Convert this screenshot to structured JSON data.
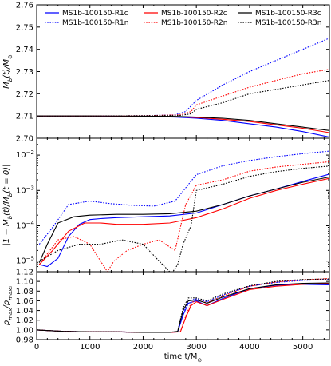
{
  "chart_data": [
    {
      "type": "line",
      "ylabel": "M_b(t)/M_⊙",
      "ylabel_parts": {
        "base": "M",
        "sub": "b",
        "mid": "(t)/M",
        "sub2": "⊙"
      },
      "xlim": [
        0,
        5500
      ],
      "ylim": [
        2.7,
        2.76
      ],
      "yticks": [
        2.7,
        2.71,
        2.72,
        2.73,
        2.74,
        2.75,
        2.76
      ],
      "ytick_labels": [
        "2.70",
        "2.71",
        "2.72",
        "2.73",
        "2.74",
        "2.75",
        "2.76"
      ],
      "xticks": [
        0,
        1000,
        2000,
        3000,
        4000,
        5000
      ],
      "legend": {
        "placement": "top",
        "entries": [
          {
            "label": "MS1b-100150-R1c",
            "color": "#0000ff",
            "style": "solid"
          },
          {
            "label": "MS1b-100150-R2c",
            "color": "#ff0000",
            "style": "solid"
          },
          {
            "label": "MS1b-100150-R3c",
            "color": "#000000",
            "style": "solid"
          },
          {
            "label": "MS1b-100150-R1n",
            "color": "#0000ff",
            "style": "dotted"
          },
          {
            "label": "MS1b-100150-R2n",
            "color": "#ff0000",
            "style": "dotted"
          },
          {
            "label": "MS1b-100150-R3n",
            "color": "#000000",
            "style": "dotted"
          }
        ]
      },
      "series": [
        {
          "name": "MS1b-100150-R1c",
          "color": "#0000ff",
          "style": "solid",
          "x": [
            0,
            1000,
            2000,
            2600,
            3000,
            3500,
            4000,
            4500,
            5000,
            5500
          ],
          "y": [
            2.71,
            2.71,
            2.7098,
            2.7095,
            2.709,
            2.708,
            2.7065,
            2.705,
            2.703,
            2.7005
          ]
        },
        {
          "name": "MS1b-100150-R1n",
          "color": "#0000ff",
          "style": "dotted",
          "x": [
            0,
            1000,
            2000,
            2600,
            2800,
            3000,
            3500,
            4000,
            4500,
            5000,
            5500
          ],
          "y": [
            2.71,
            2.71,
            2.7101,
            2.7105,
            2.712,
            2.717,
            2.724,
            2.73,
            2.735,
            2.74,
            2.745
          ]
        },
        {
          "name": "MS1b-100150-R2c",
          "color": "#ff0000",
          "style": "solid",
          "x": [
            0,
            1000,
            2000,
            2600,
            3000,
            3500,
            4000,
            4500,
            5000,
            5500
          ],
          "y": [
            2.71,
            2.71,
            2.7099,
            2.7097,
            2.7093,
            2.7085,
            2.7075,
            2.706,
            2.7045,
            2.7025
          ]
        },
        {
          "name": "MS1b-100150-R2n",
          "color": "#ff0000",
          "style": "dotted",
          "x": [
            0,
            1000,
            2000,
            2700,
            2900,
            3000,
            3500,
            4000,
            4500,
            5000,
            5500
          ],
          "y": [
            2.71,
            2.71,
            2.7101,
            2.7105,
            2.712,
            2.715,
            2.719,
            2.723,
            2.726,
            2.729,
            2.731
          ]
        },
        {
          "name": "MS1b-100150-R3c",
          "color": "#000000",
          "style": "solid",
          "x": [
            0,
            1000,
            2000,
            2600,
            3000,
            3500,
            4000,
            4500,
            5000,
            5500
          ],
          "y": [
            2.71,
            2.71,
            2.7099,
            2.7098,
            2.7095,
            2.709,
            2.708,
            2.7065,
            2.705,
            2.7035
          ]
        },
        {
          "name": "MS1b-100150-R3n",
          "color": "#000000",
          "style": "dotted",
          "x": [
            0,
            1000,
            2000,
            2700,
            2900,
            3000,
            3500,
            4000,
            4500,
            5000,
            5500
          ],
          "y": [
            2.71,
            2.71,
            2.7101,
            2.7102,
            2.711,
            2.713,
            2.716,
            2.72,
            2.722,
            2.724,
            2.726
          ]
        }
      ]
    },
    {
      "type": "line",
      "ylabel": "|1 − M_b(t)/M_b(t = 0)|",
      "ylabel_parts": {
        "pre": "|1 − M",
        "sub": "b",
        "mid": "(t)/M",
        "sub2": "b",
        "post": "(t = 0)|"
      },
      "xlim": [
        0,
        5500
      ],
      "yscale": "log",
      "ylim": [
        5e-06,
        0.03
      ],
      "ytick_exponents": [
        -5,
        -4,
        -3,
        -2
      ],
      "xticks": [
        0,
        1000,
        2000,
        3000,
        4000,
        5000
      ],
      "series": [
        {
          "name": "MS1b-100150-R1c",
          "color": "#0000ff",
          "style": "solid",
          "x": [
            50,
            200,
            400,
            600,
            800,
            1000,
            1200,
            1500,
            2000,
            2500,
            3000,
            3500,
            4000,
            4500,
            5000,
            5500
          ],
          "y": [
            8e-06,
            7e-06,
            1.2e-05,
            5e-05,
            0.00011,
            0.00015,
            0.00016,
            0.00017,
            0.00018,
            0.00019,
            0.00023,
            0.0004,
            0.0007,
            0.0011,
            0.0018,
            0.0029
          ]
        },
        {
          "name": "MS1b-100150-R1n",
          "color": "#0000ff",
          "style": "dotted",
          "x": [
            50,
            300,
            600,
            1000,
            1400,
            1800,
            2200,
            2600,
            3000,
            3500,
            4000,
            4500,
            5000,
            5500
          ],
          "y": [
            3e-05,
            9e-05,
            0.0004,
            0.0005,
            0.00042,
            0.00038,
            0.00036,
            0.0005,
            0.0028,
            0.005,
            0.007,
            0.009,
            0.011,
            0.013
          ]
        },
        {
          "name": "MS1b-100150-R2c",
          "color": "#ff0000",
          "style": "solid",
          "x": [
            50,
            300,
            600,
            900,
            1200,
            1500,
            2000,
            2500,
            3000,
            3500,
            4000,
            4500,
            5000,
            5500
          ],
          "y": [
            8e-06,
            2e-05,
            7e-05,
            0.00012,
            0.00012,
            0.00011,
            0.00011,
            0.00012,
            0.00017,
            0.0003,
            0.0006,
            0.001,
            0.0015,
            0.0022
          ]
        },
        {
          "name": "MS1b-100150-R2n",
          "color": "#ff0000",
          "style": "dotted",
          "x": [
            50,
            400,
            700,
            1000,
            1200,
            1330,
            1450,
            1700,
            2000,
            2300,
            2600,
            2800,
            3000,
            3500,
            4000,
            4500,
            5000,
            5500
          ],
          "y": [
            8e-06,
            4e-05,
            5e-05,
            3e-05,
            1e-05,
            5e-06,
            1e-05,
            2e-05,
            3e-05,
            4e-05,
            2e-05,
            0.0004,
            0.0014,
            0.002,
            0.0035,
            0.0046,
            0.0055,
            0.0065
          ]
        },
        {
          "name": "MS1b-100150-R3c",
          "color": "#000000",
          "style": "solid",
          "x": [
            50,
            200,
            400,
            700,
            1000,
            1500,
            2000,
            2500,
            3000,
            3500,
            4000,
            4500,
            5000,
            5500
          ],
          "y": [
            9e-06,
            3e-05,
            0.00012,
            0.00018,
            0.0002,
            0.00021,
            0.00021,
            0.00022,
            0.00026,
            0.0004,
            0.0007,
            0.0011,
            0.0017,
            0.0024
          ]
        },
        {
          "name": "MS1b-100150-R3n",
          "color": "#000000",
          "style": "dotted",
          "x": [
            50,
            400,
            800,
            1200,
            1600,
            2000,
            2300,
            2500,
            2560,
            2650,
            2750,
            2900,
            3000,
            3500,
            4000,
            4500,
            5000,
            5500
          ],
          "y": [
            1e-05,
            2e-05,
            3e-05,
            3e-05,
            4e-05,
            3e-05,
            1e-05,
            5e-06,
            5e-06,
            8e-06,
            3e-05,
            0.0001,
            0.001,
            0.0015,
            0.0025,
            0.0034,
            0.0042,
            0.0049
          ]
        }
      ]
    },
    {
      "type": "line",
      "ylabel": "ρ_max/ρ_max0",
      "ylabel_parts": {
        "base": "ρ",
        "sub": "max",
        "mid": "/ρ",
        "sub2": "max₀"
      },
      "xlabel": "time t/M_⊙",
      "xlabel_parts": {
        "base": "time t/M",
        "sub": "⊙"
      },
      "xlim": [
        0,
        5500
      ],
      "ylim": [
        0.98,
        1.12
      ],
      "yticks": [
        0.98,
        1.0,
        1.02,
        1.04,
        1.06,
        1.08,
        1.1,
        1.12
      ],
      "ytick_labels": [
        "0.98",
        "1.00",
        "1.02",
        "1.04",
        "1.06",
        "1.08",
        "1.10",
        "1.12"
      ],
      "xticks": [
        0,
        1000,
        2000,
        3000,
        4000,
        5000
      ],
      "xtick_labels": [
        "0",
        "1000",
        "2000",
        "3000",
        "4000",
        "5000"
      ],
      "series": [
        {
          "name": "MS1b-100150-R1c",
          "color": "#0000ff",
          "style": "solid",
          "x": [
            0,
            500,
            1000,
            1500,
            2000,
            2500,
            2650,
            2750,
            2850,
            3000,
            3200,
            3500,
            4000,
            4500,
            5000,
            5500
          ],
          "y": [
            1.0,
            0.997,
            0.996,
            0.996,
            0.995,
            0.995,
            0.996,
            1.03,
            1.055,
            1.06,
            1.05,
            1.065,
            1.085,
            1.092,
            1.094,
            1.093
          ]
        },
        {
          "name": "MS1b-100150-R1n",
          "color": "#0000ff",
          "style": "dotted",
          "x": [
            0,
            500,
            1000,
            1500,
            2000,
            2500,
            2650,
            2750,
            2850,
            3000,
            3200,
            3500,
            4000,
            4500,
            5000,
            5500
          ],
          "y": [
            1.0,
            0.997,
            0.996,
            0.996,
            0.995,
            0.995,
            0.996,
            1.035,
            1.06,
            1.064,
            1.058,
            1.072,
            1.09,
            1.098,
            1.102,
            1.104
          ]
        },
        {
          "name": "MS1b-100150-R2c",
          "color": "#ff0000",
          "style": "solid",
          "x": [
            0,
            500,
            1000,
            1500,
            2000,
            2500,
            2700,
            2800,
            2900,
            3000,
            3200,
            3500,
            4000,
            4500,
            5000,
            5500
          ],
          "y": [
            1.0,
            0.997,
            0.996,
            0.996,
            0.995,
            0.995,
            0.996,
            1.025,
            1.05,
            1.058,
            1.05,
            1.063,
            1.083,
            1.09,
            1.094,
            1.096
          ]
        },
        {
          "name": "MS1b-100150-R2n",
          "color": "#ff0000",
          "style": "dotted",
          "x": [
            0,
            500,
            1000,
            1500,
            2000,
            2500,
            2700,
            2800,
            2900,
            3000,
            3200,
            3500,
            4000,
            4500,
            5000,
            5500
          ],
          "y": [
            1.0,
            0.997,
            0.996,
            0.996,
            0.995,
            0.995,
            0.996,
            1.028,
            1.055,
            1.062,
            1.056,
            1.07,
            1.09,
            1.099,
            1.103,
            1.106
          ]
        },
        {
          "name": "MS1b-100150-R3c",
          "color": "#000000",
          "style": "solid",
          "x": [
            0,
            500,
            1000,
            1500,
            2000,
            2500,
            2650,
            2750,
            2850,
            3000,
            3200,
            3500,
            4000,
            4500,
            5000,
            5500
          ],
          "y": [
            1.0,
            0.997,
            0.996,
            0.996,
            0.995,
            0.995,
            0.997,
            1.04,
            1.06,
            1.062,
            1.055,
            1.068,
            1.085,
            1.093,
            1.096,
            1.097
          ]
        },
        {
          "name": "MS1b-100150-R3n",
          "color": "#000000",
          "style": "dotted",
          "x": [
            0,
            500,
            1000,
            1500,
            2000,
            2500,
            2650,
            2750,
            2850,
            3000,
            3200,
            3500,
            4000,
            4500,
            5000,
            5500
          ],
          "y": [
            1.0,
            0.997,
            0.996,
            0.996,
            0.995,
            0.995,
            0.997,
            1.045,
            1.066,
            1.066,
            1.06,
            1.074,
            1.091,
            1.1,
            1.104,
            1.105
          ]
        }
      ]
    }
  ]
}
